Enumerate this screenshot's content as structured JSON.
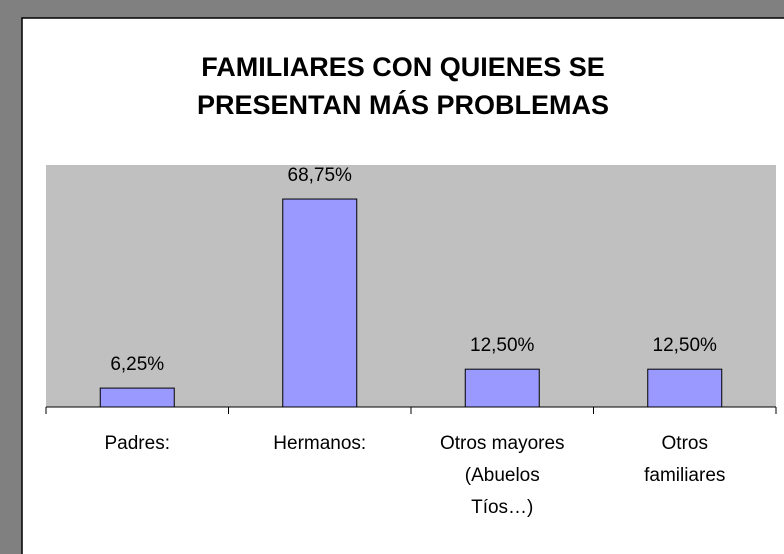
{
  "chart_data": {
    "type": "bar",
    "title": "FAMILIARES CON QUIENES SE\nPRESENTAN MÁS PROBLEMAS",
    "categories": [
      "Padres:",
      "Hermanos:",
      "Otros mayores\n(Abuelos\nTíos…)",
      "Otros\nfamiliares"
    ],
    "values": [
      6.25,
      68.75,
      12.5,
      12.5
    ],
    "value_labels": [
      "6,25%",
      "68,75%",
      "12,50%",
      "12,50%"
    ],
    "color": "#9999ff",
    "ylim": [
      0,
      80
    ]
  }
}
